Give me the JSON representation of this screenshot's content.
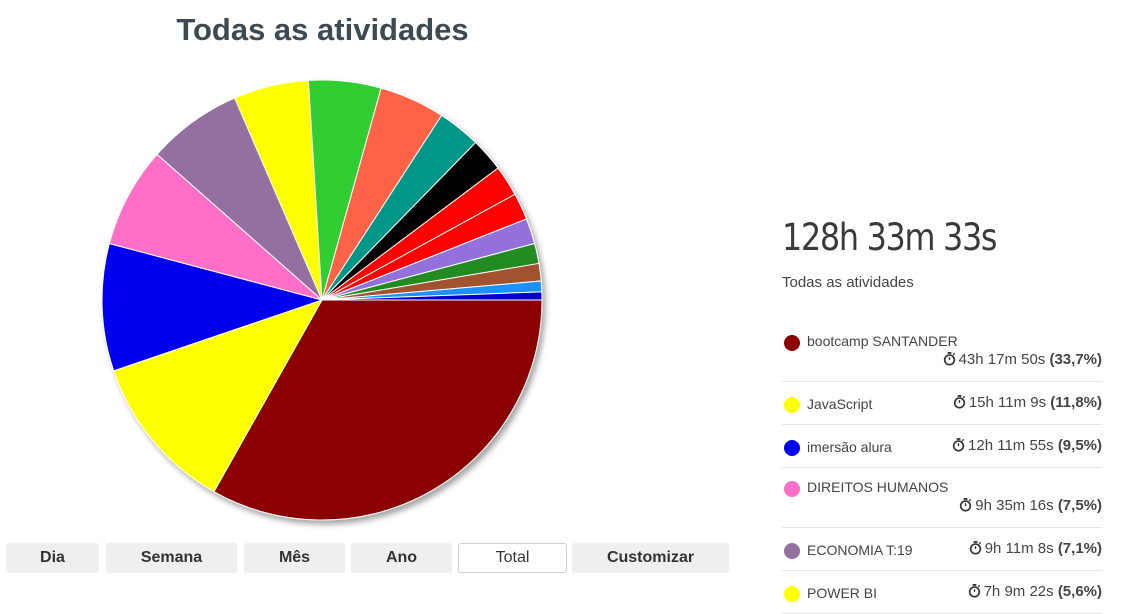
{
  "title": "Todas as atividades",
  "chart_data": {
    "type": "pie",
    "title": "Todas as atividades",
    "slices": [
      {
        "label": "bootcamp SANTANDER",
        "value": 33.7,
        "color": "#8b0000"
      },
      {
        "label": "JavaScript",
        "value": 11.8,
        "color": "#ffff00"
      },
      {
        "label": "imersão alura",
        "value": 9.5,
        "color": "#0000ee"
      },
      {
        "label": "DIREITOS HUMANOS",
        "value": 7.5,
        "color": "#ff6ec7"
      },
      {
        "label": "ECONOMIA T:19",
        "value": 7.1,
        "color": "#9370a0"
      },
      {
        "label": "POWER BI",
        "value": 5.6,
        "color": "#ffff00"
      },
      {
        "label": "",
        "value": 5.4,
        "color": "#32cd32"
      },
      {
        "label": "",
        "value": 4.9,
        "color": "#ff6347"
      },
      {
        "label": "",
        "value": 3.2,
        "color": "#009688"
      },
      {
        "label": "",
        "value": 2.5,
        "color": "#000000"
      },
      {
        "label": "",
        "value": 2.3,
        "color": "#ff0000"
      },
      {
        "label": "",
        "value": 2.0,
        "color": "#ff0000"
      },
      {
        "label": "",
        "value": 1.9,
        "color": "#9370db"
      },
      {
        "label": "",
        "value": 1.5,
        "color": "#228b22"
      },
      {
        "label": "",
        "value": 1.3,
        "color": "#a0522d"
      },
      {
        "label": "",
        "value": 0.8,
        "color": "#1e90ff"
      },
      {
        "label": "",
        "value": 0.6,
        "color": "#0000cd"
      }
    ]
  },
  "tabs": [
    "Dia",
    "Semana",
    "Mês",
    "Ano",
    "Total",
    "Customizar"
  ],
  "active_tab": "Total",
  "total_time": "128h 33m 33s",
  "total_label": "Todas as atividades",
  "activities": [
    {
      "name": "bootcamp SANTANDER",
      "time": "43h 17m 50s",
      "percent": "(33,7%)",
      "color": "#8b0000",
      "two_line": true
    },
    {
      "name": "JavaScript",
      "time": "15h 11m 9s",
      "percent": "(11,8%)",
      "color": "#ffff00",
      "two_line": false
    },
    {
      "name": "imersão alura",
      "time": "12h 11m 55s",
      "percent": "(9,5%)",
      "color": "#0000ee",
      "two_line": false
    },
    {
      "name": "DIREITOS HUMANOS",
      "time": "9h 35m 16s",
      "percent": "(7,5%)",
      "color": "#ff6ec7",
      "two_line": true
    },
    {
      "name": "ECONOMIA T:19",
      "time": "9h 11m 8s",
      "percent": "(7,1%)",
      "color": "#9370a0",
      "two_line": false
    },
    {
      "name": "POWER BI",
      "time": "7h 9m 22s",
      "percent": "(5,6%)",
      "color": "#ffff00",
      "two_line": false
    }
  ]
}
